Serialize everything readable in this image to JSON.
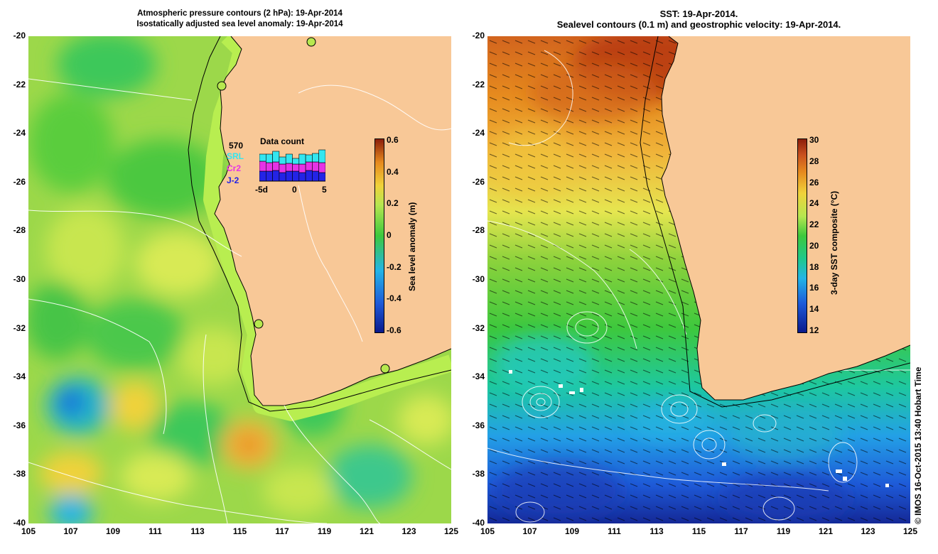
{
  "left_panel": {
    "title_line1": "Atmospheric pressure contours (2 hPa): 19-Apr-2014",
    "title_line2": "Isostatically adjusted sea level anomaly: 19-Apr-2014",
    "colorbar": {
      "label": "Sea level anomaly (m)",
      "ticks": [
        "0.6",
        "0.4",
        "0.2",
        "0",
        "-0.2",
        "-0.4",
        "-0.6"
      ],
      "range": [
        -0.6,
        0.6
      ],
      "colors": [
        "#0a1a8c",
        "#1e5ad8",
        "#23b4e6",
        "#3dc83d",
        "#b6e650",
        "#f0d23a",
        "#e68a1e",
        "#b4320a"
      ]
    },
    "inset": {
      "total": "570",
      "title": "Data count",
      "legend": [
        {
          "label": "SRL",
          "color": "#33e6f0"
        },
        {
          "label": "Cr2",
          "color": "#e632e6"
        },
        {
          "label": "J-2",
          "color": "#2323e6"
        }
      ],
      "x_ticks": [
        "-5d",
        "0",
        "5"
      ]
    }
  },
  "right_panel": {
    "title_line1": "SST: 19-Apr-2014.",
    "title_line2": "Sealevel contours (0.1 m) and geostrophic velocity: 19-Apr-2014.",
    "colorbar": {
      "label": "3-day SST composite (°C)",
      "ticks": [
        "30",
        "28",
        "26",
        "24",
        "22",
        "20",
        "18",
        "16",
        "14",
        "12"
      ],
      "range": [
        12,
        30
      ],
      "colors": [
        "#0a1a8c",
        "#1e5ad8",
        "#23b4e6",
        "#1ec88c",
        "#3dc83d",
        "#b6e650",
        "#f0d23a",
        "#e68a1e",
        "#c8501e",
        "#8c1e0a"
      ]
    }
  },
  "axes": {
    "y_ticks": [
      "-20",
      "-22",
      "-24",
      "-26",
      "-28",
      "-30",
      "-32",
      "-34",
      "-36",
      "-38",
      "-40"
    ],
    "x_ticks": [
      "105",
      "107",
      "109",
      "111",
      "113",
      "115",
      "117",
      "119",
      "121",
      "123",
      "125"
    ]
  },
  "land_color": "#f8c897",
  "credit": "© IMOS 16-Oct-2015 13:40 Hobart Time"
}
